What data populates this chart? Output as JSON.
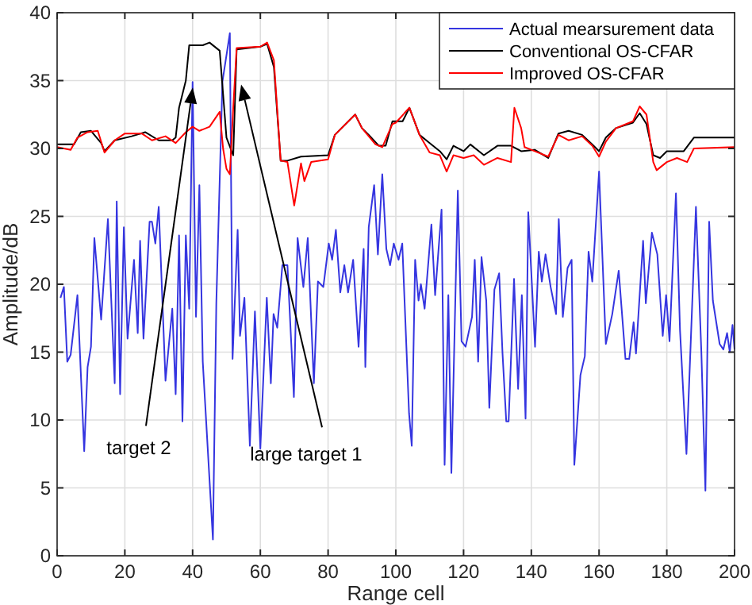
{
  "chart_data": {
    "type": "line",
    "xlabel": "Range cell",
    "ylabel": "Amplitude/dB",
    "xlim": [
      0,
      200
    ],
    "xticks": [
      0,
      20,
      40,
      60,
      80,
      100,
      120,
      140,
      160,
      180,
      200
    ],
    "ylim": [
      0,
      40
    ],
    "yticks": [
      0,
      5,
      10,
      15,
      20,
      25,
      30,
      35,
      40
    ],
    "grid": true,
    "legend": "top right",
    "marker": "none",
    "line_style": "solid",
    "annotations": [
      "target 2",
      "large target 1"
    ],
    "series": [
      {
        "name": "Actual mearsurement data",
        "color": "#3535e0",
        "x": [
          1,
          2,
          3,
          4,
          6,
          8,
          9,
          10,
          11,
          13,
          15,
          17,
          17.6,
          18.6,
          19.7,
          20.8,
          22.7,
          23.8,
          24.5,
          25.5,
          27.3,
          28,
          29,
          30,
          32,
          34,
          35,
          36,
          37,
          38,
          39,
          40,
          41,
          42,
          43,
          46,
          47,
          48.8,
          51,
          51.8,
          53.3,
          54,
          55.3,
          56.9,
          58.4,
          60,
          61.9,
          63.1,
          63.9,
          65,
          66.5,
          68,
          69.9,
          71,
          72.7,
          74,
          75.8,
          77,
          78.6,
          80.2,
          81.2,
          82.3,
          83.6,
          84.8,
          85.9,
          87.4,
          89,
          90.5,
          91,
          92,
          93.6,
          94.7,
          96,
          97.2,
          98.3,
          99.4,
          100.8,
          101.9,
          103.9,
          104.7,
          105.7,
          106.7,
          107.4,
          108.5,
          110.5,
          111.6,
          113.5,
          114.4,
          115.5,
          116.4,
          118.3,
          119.4,
          120.6,
          122.5,
          123.3,
          124.3,
          125.3,
          126.7,
          127.6,
          129.1,
          130.5,
          131.5,
          132.6,
          133.3,
          134.9,
          136.1,
          137.2,
          138.3,
          139.1,
          141.1,
          142.2,
          143.1,
          144.2,
          145.7,
          147.3,
          148.1,
          149.3,
          150.7,
          151.9,
          152.7,
          154.5,
          155.8,
          156.9,
          158,
          160,
          162,
          163.9,
          165.8,
          167.8,
          168.9,
          170.2,
          170.9,
          173,
          173.8,
          175.6,
          177.2,
          178.8,
          179.8,
          180.8,
          182.7,
          183.9,
          185.8,
          188.6,
          190.2,
          191.4,
          192.5,
          193.6,
          195.6,
          196.7,
          197.8,
          198.6,
          199.4,
          200
        ],
        "values": [
          19,
          19.8,
          14.3,
          14.8,
          19.2,
          7.7,
          13.9,
          15.4,
          23.4,
          17.4,
          24.8,
          12.7,
          26.1,
          11.9,
          24.2,
          16,
          21.8,
          16.4,
          23.2,
          16,
          24.6,
          24.6,
          23,
          25.7,
          12.9,
          18.2,
          11.9,
          23.6,
          9.9,
          23.6,
          18.2,
          34.9,
          17.6,
          27.3,
          14.3,
          1.2,
          18.6,
          34.9,
          38.5,
          14.5,
          24,
          16.2,
          19,
          8.1,
          18,
          7.9,
          19,
          12.7,
          17.8,
          16.8,
          21.4,
          21.4,
          11.7,
          23.4,
          19.8,
          23.4,
          12.7,
          20.2,
          19.8,
          23,
          21.8,
          24,
          19.4,
          21.4,
          19.4,
          21.8,
          15.4,
          22.6,
          13.9,
          24.2,
          27.3,
          22.2,
          28.1,
          22.6,
          21.4,
          23,
          21.8,
          23,
          10.5,
          8.1,
          21.8,
          18.8,
          20,
          18.2,
          24.4,
          19.2,
          25.5,
          6.7,
          19.2,
          6.1,
          26.9,
          15.8,
          15.4,
          17.6,
          21.8,
          14.3,
          22,
          18.8,
          10.9,
          19.6,
          20.8,
          14.9,
          9.9,
          9.9,
          20.4,
          12.3,
          19.2,
          10.1,
          25.3,
          15.4,
          22.4,
          20.2,
          22.2,
          19.8,
          17.8,
          24.8,
          17.6,
          21.2,
          21.8,
          6.7,
          13.3,
          14.7,
          22.4,
          20.2,
          28.3,
          15.6,
          17.8,
          21,
          14.5,
          14.5,
          17.2,
          14.9,
          23.2,
          18.6,
          23.8,
          22.2,
          16.2,
          19.2,
          15.8,
          26.7,
          16.6,
          7.5,
          25.7,
          15,
          4.8,
          24.6,
          18.8,
          15.6,
          15.2,
          16.4,
          15,
          17,
          15.2
        ]
      },
      {
        "name": "Conventional OS-CFAR",
        "color": "#000000",
        "x": [
          0,
          5,
          7,
          10,
          13,
          14,
          17,
          22,
          26,
          30,
          34,
          35,
          36,
          38,
          39,
          43,
          45,
          48,
          49,
          50,
          52,
          53,
          60,
          62,
          64,
          66,
          68,
          72,
          80,
          82,
          86,
          88,
          90,
          92,
          95,
          97,
          99,
          102,
          104,
          107,
          110,
          113,
          115,
          117,
          120,
          122,
          126,
          130,
          134,
          137,
          141,
          145,
          148,
          151,
          155,
          158,
          160,
          162,
          165,
          170,
          172,
          174,
          176,
          178,
          180,
          185,
          188,
          200
        ],
        "values": [
          30.3,
          30.3,
          31.2,
          31.3,
          30.4,
          29.8,
          30.6,
          30.9,
          31.2,
          30.6,
          30.6,
          30.8,
          33,
          35,
          37.6,
          37.6,
          37.8,
          37.2,
          34,
          30.8,
          29.5,
          37.3,
          37.5,
          37.7,
          36,
          29.1,
          29.1,
          29.4,
          29.5,
          31,
          32,
          32.5,
          31.5,
          31,
          30.2,
          30.2,
          32,
          32,
          33,
          31,
          30.4,
          29.8,
          29.2,
          30.2,
          29.8,
          30.3,
          29.5,
          30.2,
          30.2,
          29.8,
          29.9,
          29.3,
          31.1,
          31.3,
          31,
          30.3,
          29.8,
          30.8,
          31.5,
          31.9,
          32.6,
          31.8,
          29.5,
          29.3,
          29.8,
          29.8,
          30.8,
          30.8
        ]
      },
      {
        "name": "Improved OS-CFAR",
        "color": "#ff0000",
        "x": [
          0,
          4,
          6,
          9,
          12,
          14,
          17,
          20,
          25,
          28,
          32,
          35,
          38,
          40,
          42,
          45,
          48,
          49,
          50,
          51,
          52,
          53,
          60,
          62,
          64,
          66,
          68,
          70,
          72,
          73,
          75,
          80,
          82,
          86,
          88,
          90,
          94,
          96,
          99,
          100,
          104,
          107,
          110,
          113,
          115,
          117,
          120,
          123,
          126,
          130,
          134,
          135,
          137,
          138,
          141,
          145,
          148,
          151,
          155,
          158,
          160,
          162,
          165,
          168,
          170,
          172,
          174,
          176,
          177,
          180,
          183,
          186,
          188,
          200
        ],
        "values": [
          30.1,
          29.9,
          30.8,
          31.2,
          31.3,
          29.7,
          30.6,
          31.1,
          31.1,
          30.6,
          30.9,
          30.4,
          31.2,
          31.6,
          31.3,
          31.6,
          32.7,
          30,
          28.5,
          28.1,
          33,
          37.4,
          37.5,
          37.8,
          36.5,
          29.1,
          29,
          25.8,
          28.9,
          27.6,
          29,
          29.2,
          31,
          32,
          32.5,
          31.5,
          30.3,
          30.1,
          31.8,
          31.9,
          33,
          31,
          29.7,
          29.5,
          28.3,
          29.5,
          29.3,
          29.5,
          28.8,
          29.3,
          29,
          33,
          31.5,
          30.1,
          29.8,
          29.4,
          31,
          30.6,
          30.9,
          30.2,
          29.4,
          30.5,
          31.5,
          31.8,
          32,
          33.1,
          32.5,
          29,
          28.4,
          29,
          29.3,
          29,
          30,
          30.1
        ]
      }
    ]
  }
}
